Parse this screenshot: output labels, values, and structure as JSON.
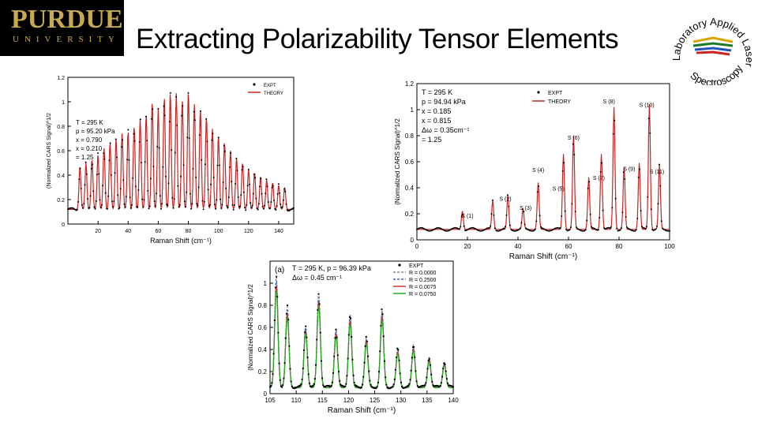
{
  "header": {
    "logo_name": "PURDUE",
    "logo_sub": "UNIVERSITY",
    "title": "Extracting Polarizability Tensor Elements",
    "lab_logo_text": "Applied Laser Spectroscopy Laboratory"
  },
  "chart_data": [
    {
      "type": "line",
      "xlabel": "Raman Shift (cm⁻¹)",
      "ylabel": "(Normalized CARS Signal)^1/2",
      "xlim": [
        0,
        150
      ],
      "ylim": [
        0,
        1.2
      ],
      "xticks": [
        20,
        40,
        60,
        80,
        100,
        120,
        140
      ],
      "yticks": [
        0,
        0.2,
        0.4,
        0.6,
        0.8,
        1.0,
        1.2
      ],
      "ytick_labels": [
        "0",
        "0.2",
        "0.4",
        "0.6",
        "0.8",
        "1",
        "1.2"
      ],
      "annotations": [
        "T = 295 K",
        "p = 95.20 kPa",
        "x = 0.790",
        "x = 0.210",
        "= 1.25"
      ],
      "legend": [
        "EXPT",
        "THEORY"
      ],
      "legend_position": "top-right",
      "series": [
        {
          "name": "EXPT",
          "color": "#000000",
          "style": "dots",
          "peaks": [
            [
              8,
              0.35
            ],
            [
              12,
              0.38
            ],
            [
              16,
              0.41
            ],
            [
              20,
              0.45
            ],
            [
              24,
              0.5
            ],
            [
              28,
              0.55
            ],
            [
              32,
              0.58
            ],
            [
              36,
              0.62
            ],
            [
              40,
              0.64
            ],
            [
              44,
              0.68
            ],
            [
              48,
              0.74
            ],
            [
              52,
              0.78
            ],
            [
              56,
              0.88
            ],
            [
              60,
              0.82
            ],
            [
              64,
              0.92
            ],
            [
              68,
              0.96
            ],
            [
              72,
              0.95
            ],
            [
              76,
              0.9
            ],
            [
              80,
              0.96
            ],
            [
              84,
              0.86
            ],
            [
              88,
              0.82
            ],
            [
              92,
              0.76
            ],
            [
              96,
              0.66
            ],
            [
              100,
              0.6
            ],
            [
              104,
              0.55
            ],
            [
              108,
              0.48
            ],
            [
              112,
              0.42
            ],
            [
              116,
              0.38
            ],
            [
              120,
              0.33
            ],
            [
              124,
              0.3
            ],
            [
              128,
              0.27
            ],
            [
              132,
              0.24
            ],
            [
              136,
              0.22
            ],
            [
              140,
              0.2
            ],
            [
              144,
              0.18
            ]
          ]
        },
        {
          "name": "THEORY",
          "color": "#cc2222",
          "style": "line"
        }
      ]
    },
    {
      "type": "line",
      "xlabel": "Raman Shift (cm⁻¹)",
      "ylabel": "(Normalized CARS Signal)^1/2",
      "xlim": [
        0,
        100
      ],
      "ylim": [
        0,
        1.2
      ],
      "xticks": [
        0,
        20,
        40,
        60,
        80,
        100
      ],
      "yticks": [
        0,
        0.2,
        0.4,
        0.6,
        0.8,
        1.0,
        1.2
      ],
      "ytick_labels": [
        "0",
        "0.2",
        "0.4",
        "0.6",
        "0.8",
        "1",
        "1.2"
      ],
      "annotations": [
        "T = 295 K",
        "p = 94.94 kPa",
        "x = 0.185",
        "x = 0.815",
        "Δω = 0.35cm⁻¹",
        "= 1.25"
      ],
      "legend": [
        "EXPT",
        "THEORY"
      ],
      "legend_position": "top-center",
      "series": [
        {
          "name": "EXPT",
          "color": "#000000",
          "style": "dots",
          "peaks": [
            [
              18,
              0.14
            ],
            [
              30,
              0.22
            ],
            [
              36,
              0.26
            ],
            [
              42,
              0.16
            ],
            [
              48,
              0.36
            ],
            [
              58,
              0.58
            ],
            [
              62,
              0.72
            ],
            [
              68,
              0.4
            ],
            [
              73,
              0.58
            ],
            [
              78,
              0.94
            ],
            [
              82,
              0.48
            ],
            [
              88,
              0.51
            ],
            [
              92,
              0.96
            ],
            [
              96,
              0.5
            ]
          ]
        },
        {
          "name": "THEORY",
          "color": "#cc2222",
          "style": "line"
        }
      ],
      "peak_labels": [
        {
          "text": "S (1)",
          "x": 20,
          "y": 0.17
        },
        {
          "text": "S (2)",
          "x": 35,
          "y": 0.3
        },
        {
          "text": "S (3)",
          "x": 43,
          "y": 0.23
        },
        {
          "text": "S (4)",
          "x": 48,
          "y": 0.52
        },
        {
          "text": "S (5)",
          "x": 56,
          "y": 0.38
        },
        {
          "text": "S (6)",
          "x": 62,
          "y": 0.77
        },
        {
          "text": "S (7)",
          "x": 72,
          "y": 0.46
        },
        {
          "text": "S (8)",
          "x": 76,
          "y": 1.05
        },
        {
          "text": "S (9)",
          "x": 84,
          "y": 0.53
        },
        {
          "text": "S (10)",
          "x": 91,
          "y": 1.02
        },
        {
          "text": "S (11)",
          "x": 95,
          "y": 0.51
        }
      ]
    },
    {
      "type": "line",
      "xlabel": "Raman Shift (cm⁻¹)",
      "ylabel": "(Normalized CARS Signal)^1/2",
      "xlim": [
        105,
        140
      ],
      "ylim": [
        0,
        1.2
      ],
      "xticks": [
        105,
        110,
        115,
        120,
        125,
        130,
        135,
        140
      ],
      "yticks": [
        0,
        0.2,
        0.4,
        0.6,
        0.8,
        1.0
      ],
      "ytick_labels": [
        "0",
        "0.2",
        "0.4",
        "0.6",
        "0.8",
        "1"
      ],
      "panel_label": "(a)",
      "annotations": [
        "T = 295 K, p = 96.39 kPa",
        "Δω = 0.45 cm⁻¹"
      ],
      "legend": [
        "EXPT",
        "R = 0.0000",
        "R = 0.2500",
        "R = 0.0075",
        "R = 0.0750"
      ],
      "legend_position": "top-right",
      "series": [
        {
          "name": "EXPT",
          "color": "#000000",
          "style": "dots",
          "peaks": [
            [
              106.2,
              1.0
            ],
            [
              108.3,
              0.73
            ],
            [
              111.8,
              0.56
            ],
            [
              114.3,
              0.85
            ],
            [
              117.6,
              0.53
            ],
            [
              120.3,
              0.66
            ],
            [
              123.4,
              0.45
            ],
            [
              126.4,
              0.7
            ],
            [
              129.4,
              0.35
            ],
            [
              132.4,
              0.38
            ],
            [
              135.4,
              0.27
            ],
            [
              138.3,
              0.23
            ]
          ]
        },
        {
          "name": "R = 0.0000",
          "color": "#888888",
          "style": "dashed"
        },
        {
          "name": "R = 0.2500",
          "color": "#3366cc",
          "style": "dashed"
        },
        {
          "name": "R = 0.0075",
          "color": "#cc3333",
          "style": "line"
        },
        {
          "name": "R = 0.0750",
          "color": "#22aa22",
          "style": "line"
        }
      ]
    }
  ]
}
